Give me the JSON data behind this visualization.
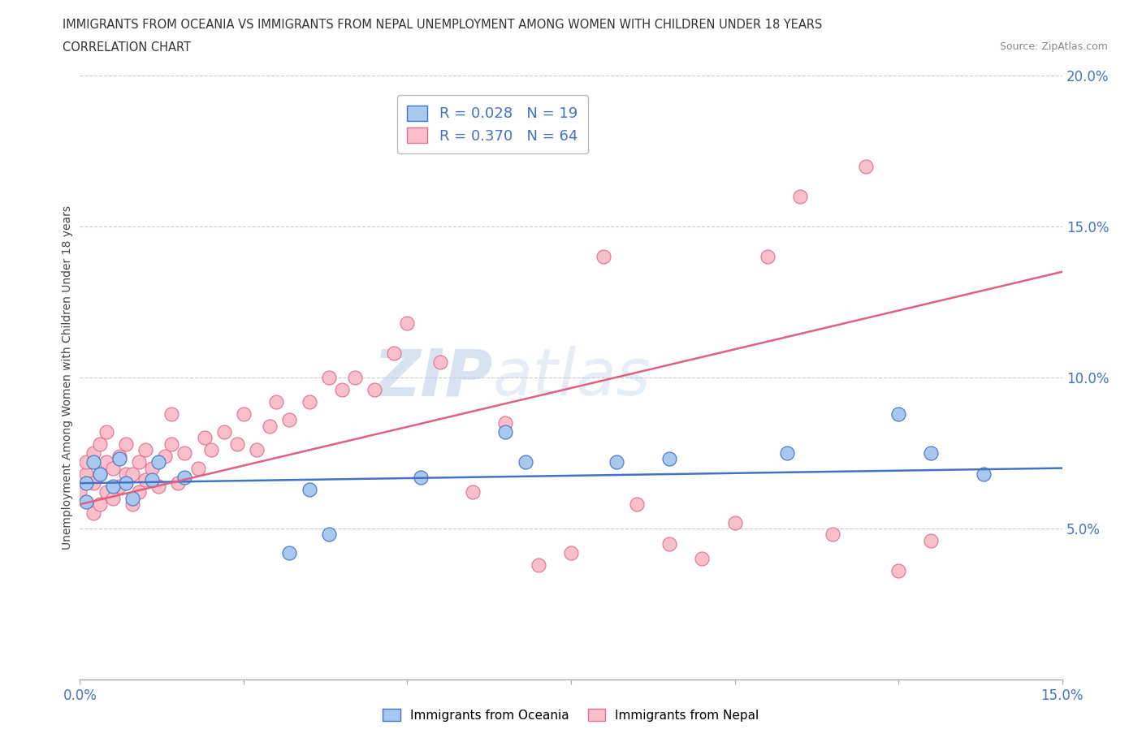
{
  "title_line1": "IMMIGRANTS FROM OCEANIA VS IMMIGRANTS FROM NEPAL UNEMPLOYMENT AMONG WOMEN WITH CHILDREN UNDER 18 YEARS",
  "title_line2": "CORRELATION CHART",
  "source_text": "Source: ZipAtlas.com",
  "ylabel": "Unemployment Among Women with Children Under 18 years",
  "xlim": [
    0.0,
    0.15
  ],
  "ylim": [
    0.0,
    0.2
  ],
  "xticks": [
    0.0,
    0.025,
    0.05,
    0.075,
    0.1,
    0.125,
    0.15
  ],
  "xtick_labels": [
    "0.0%",
    "",
    "",
    "",
    "",
    "",
    "15.0%"
  ],
  "yticks": [
    0.0,
    0.05,
    0.1,
    0.15,
    0.2
  ],
  "ytick_labels": [
    "",
    "5.0%",
    "10.0%",
    "15.0%",
    "20.0%"
  ],
  "watermark_zip": "ZIP",
  "watermark_atlas": "atlas",
  "color_oceania_fill": "#a8c8f0",
  "color_oceania_edge": "#4472c4",
  "color_nepal_fill": "#f9c0cc",
  "color_nepal_edge": "#e07090",
  "color_line_blue": "#4472c4",
  "color_line_pink": "#e06080",
  "color_text_blue": "#4472c4",
  "oceania_x": [
    0.001,
    0.002,
    0.001,
    0.003,
    0.005,
    0.006,
    0.007,
    0.008,
    0.011,
    0.012,
    0.016,
    0.032,
    0.035,
    0.038,
    0.052,
    0.065,
    0.068,
    0.082,
    0.09,
    0.108,
    0.125,
    0.13,
    0.138
  ],
  "oceania_y": [
    0.065,
    0.072,
    0.059,
    0.068,
    0.064,
    0.073,
    0.065,
    0.06,
    0.066,
    0.072,
    0.067,
    0.042,
    0.063,
    0.048,
    0.067,
    0.082,
    0.072,
    0.072,
    0.073,
    0.075,
    0.088,
    0.075,
    0.068
  ],
  "nepal_x": [
    0.0,
    0.001,
    0.001,
    0.002,
    0.002,
    0.002,
    0.003,
    0.003,
    0.003,
    0.004,
    0.004,
    0.004,
    0.005,
    0.005,
    0.006,
    0.006,
    0.007,
    0.007,
    0.008,
    0.008,
    0.009,
    0.009,
    0.01,
    0.01,
    0.011,
    0.012,
    0.013,
    0.014,
    0.014,
    0.015,
    0.016,
    0.018,
    0.019,
    0.02,
    0.022,
    0.024,
    0.025,
    0.027,
    0.029,
    0.03,
    0.032,
    0.035,
    0.038,
    0.04,
    0.042,
    0.045,
    0.048,
    0.05,
    0.055,
    0.06,
    0.065,
    0.07,
    0.075,
    0.08,
    0.085,
    0.09,
    0.095,
    0.1,
    0.105,
    0.11,
    0.115,
    0.12,
    0.125,
    0.13
  ],
  "nepal_y": [
    0.062,
    0.068,
    0.072,
    0.055,
    0.065,
    0.075,
    0.058,
    0.068,
    0.078,
    0.062,
    0.072,
    0.082,
    0.06,
    0.07,
    0.064,
    0.074,
    0.068,
    0.078,
    0.058,
    0.068,
    0.062,
    0.072,
    0.066,
    0.076,
    0.07,
    0.064,
    0.074,
    0.078,
    0.088,
    0.065,
    0.075,
    0.07,
    0.08,
    0.076,
    0.082,
    0.078,
    0.088,
    0.076,
    0.084,
    0.092,
    0.086,
    0.092,
    0.1,
    0.096,
    0.1,
    0.096,
    0.108,
    0.118,
    0.105,
    0.062,
    0.085,
    0.038,
    0.042,
    0.14,
    0.058,
    0.045,
    0.04,
    0.052,
    0.14,
    0.16,
    0.048,
    0.17,
    0.036,
    0.046
  ],
  "oceania_line_x": [
    0.0,
    0.15
  ],
  "oceania_line_y": [
    0.065,
    0.07
  ],
  "nepal_line_x": [
    0.0,
    0.15
  ],
  "nepal_line_y": [
    0.058,
    0.135
  ],
  "grid_color": "#cccccc",
  "background_color": "#ffffff"
}
